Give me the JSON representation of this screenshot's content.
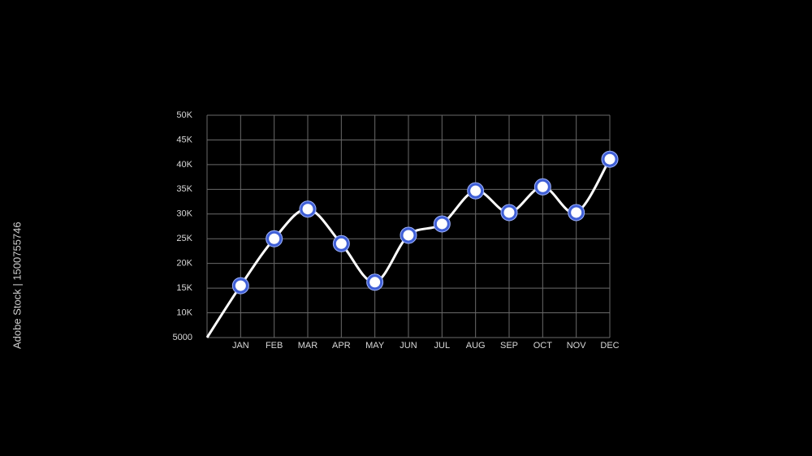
{
  "chart_data": {
    "type": "line",
    "categories": [
      null,
      "JAN",
      "FEB",
      "MAR",
      "APR",
      "MAY",
      "JUN",
      "JUL",
      "AUG",
      "SEP",
      "OCT",
      "NOV",
      "DEC"
    ],
    "series": [
      {
        "color": "#ffffff",
        "values": [
          5000,
          15500,
          25000,
          31000,
          24000,
          16200,
          25700,
          28000,
          34700,
          30300,
          35500,
          30300,
          41100
        ]
      }
    ],
    "ylim": [
      5000,
      50000
    ],
    "yticks": [
      5000,
      {
        "value": 10000,
        "label": "10K"
      },
      {
        "value": 15000,
        "label": "15K"
      },
      {
        "value": 20000,
        "label": "20K"
      },
      {
        "value": 25000,
        "label": "25K"
      },
      {
        "value": 30000,
        "label": "30K"
      },
      {
        "value": 35000,
        "label": "35K"
      },
      {
        "value": 40000,
        "label": "40K"
      },
      {
        "value": 45000,
        "label": "45K"
      },
      {
        "value": 50000,
        "label": "50K"
      }
    ],
    "grid": true
  },
  "side_caption": "Adobe Stock | 1500755746"
}
